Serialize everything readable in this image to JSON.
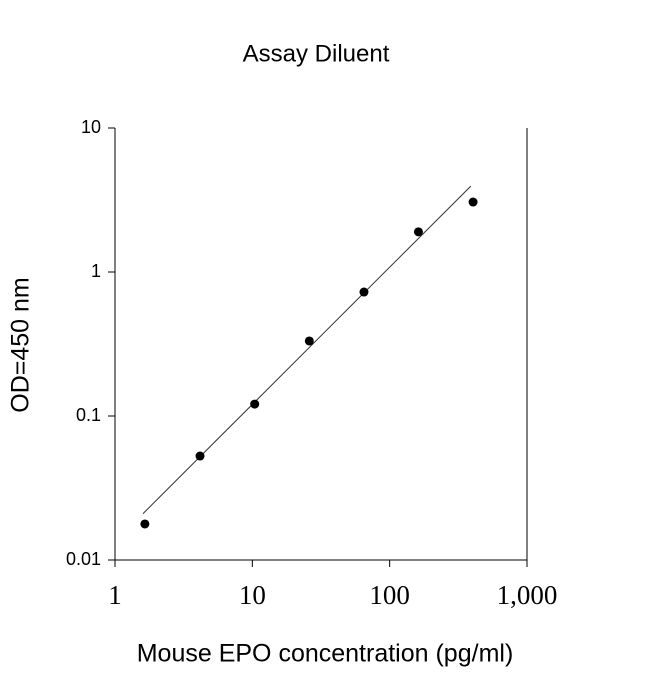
{
  "chart_data": {
    "type": "scatter",
    "title": "Assay Diluent",
    "xlabel": "Mouse EPO concentration (pg/ml)",
    "ylabel": "OD=450 nm",
    "x": [
      1.65,
      4.16,
      10.4,
      26,
      65,
      162,
      405
    ],
    "y": [
      0.0178,
      0.0527,
      0.121,
      0.332,
      0.726,
      1.9,
      3.06
    ],
    "color": "#000000",
    "fit": {
      "x": [
        1.6,
        390
      ],
      "y": [
        0.021,
        3.95
      ]
    },
    "xscale": "log",
    "yscale": "log",
    "xlim": [
      1,
      1000
    ],
    "ylim": [
      0.01,
      10
    ],
    "xticks": [
      1,
      10,
      100,
      {
        "value": 1000,
        "label": "1,000"
      }
    ],
    "yticks": [
      0.01,
      0.1,
      1,
      10
    ]
  }
}
